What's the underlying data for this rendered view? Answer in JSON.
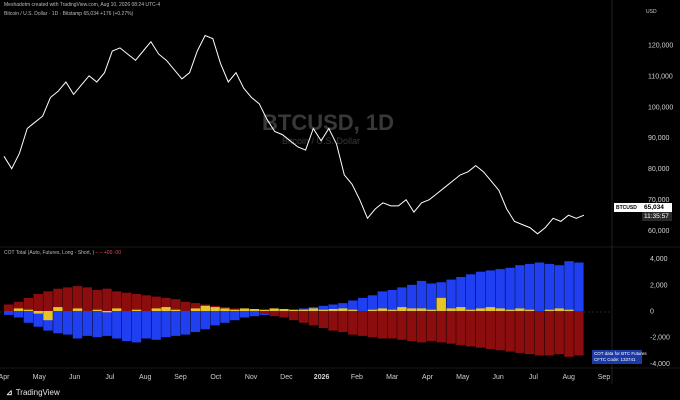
{
  "header": {
    "credit": "Meshadotm created with TradingView.com, Aug 10, 2026 08:24 UTC-4",
    "series_line": "Bitcoin / U.S. Dollar · 1D · Bitstamp 65,034 +176 (+0.27%)",
    "cot_line": "COT Total (Auto, Futures, Long - Short, ) ",
    "cot_values": "–  – +00 -00"
  },
  "watermark": {
    "symbol": "BTCUSD, 1D",
    "name": "Bitcoin / U.S. Dollar"
  },
  "currency": "USD",
  "price_badge": {
    "symbol": "BTCUSD",
    "last": "65,034",
    "countdown": "11:35:57"
  },
  "cot_note": {
    "line1": "COT data for BTC Futures",
    "line2": "CFTC Code: 133741"
  },
  "footer": {
    "brand": "TradingView"
  },
  "colors": {
    "price": "#ffffff",
    "long": "#1f3ff0",
    "short": "#8b0d0d",
    "net": "#e6c52a",
    "background": "#000000"
  },
  "chart_data": [
    {
      "type": "line",
      "title": "Bitcoin / U.S. Dollar",
      "x_labels": [
        "Apr",
        "May",
        "Jun",
        "Jul",
        "Aug",
        "Sep",
        "Oct",
        "Nov",
        "Dec",
        "2026",
        "Feb",
        "Mar",
        "Apr",
        "May",
        "Jun",
        "Jul",
        "Aug",
        "Sep"
      ],
      "y_ticks": [
        "60,000",
        "70,000",
        "80,000",
        "90,000",
        "100,000",
        "110,000",
        "120,000"
      ],
      "ylim": [
        57000,
        128000
      ],
      "series": [
        {
          "values": [
            84000,
            80000,
            85000,
            93000,
            95000,
            97000,
            103000,
            105000,
            108000,
            104000,
            107000,
            110000,
            108000,
            111000,
            118000,
            119000,
            117000,
            115000,
            118000,
            121000,
            117000,
            115000,
            112000,
            109000,
            111000,
            118000,
            123000,
            122000,
            114000,
            108000,
            111000,
            106000,
            103000,
            101000,
            96000,
            92000,
            91000,
            89000,
            87000,
            86000,
            93000,
            89000,
            93000,
            88000,
            78000,
            75000,
            70000,
            64000,
            67000,
            69000,
            68000,
            68000,
            70000,
            66000,
            69000,
            70000,
            72000,
            74000,
            76000,
            78000,
            79000,
            81000,
            79000,
            76000,
            73000,
            67000,
            63000,
            62000,
            61000,
            59000,
            61000,
            64000,
            63000,
            65000,
            64000,
            65000
          ]
        }
      ]
    },
    {
      "type": "bar",
      "title": "COT Total (Auto, Futures, Long - Short, )",
      "y_ticks": [
        "4,000",
        "2,000",
        "0",
        "-2,000",
        "-4,000"
      ],
      "ylim": [
        -4200,
        4200
      ],
      "series": [
        {
          "name": "Long",
          "values": [
            -300,
            -500,
            -900,
            -1200,
            -1500,
            -1700,
            -1800,
            -2100,
            -1900,
            -2000,
            -1900,
            -2100,
            -2300,
            -2400,
            -2100,
            -2200,
            -2000,
            -1900,
            -1800,
            -1600,
            -1400,
            -1100,
            -900,
            -700,
            -500,
            -400,
            -300,
            -200,
            -100,
            0,
            200,
            300,
            400,
            500,
            600,
            800,
            1000,
            1200,
            1500,
            1600,
            1800,
            2000,
            2300,
            2100,
            2200,
            2400,
            2600,
            2800,
            3000,
            3100,
            3200,
            3300,
            3500,
            3600,
            3700,
            3600,
            3500,
            3800,
            3700
          ]
        },
        {
          "name": "Short",
          "values": [
            500,
            700,
            1000,
            1300,
            1500,
            1700,
            1800,
            1900,
            1800,
            1600,
            1700,
            1500,
            1400,
            1300,
            1200,
            1100,
            1000,
            900,
            700,
            600,
            500,
            400,
            300,
            200,
            100,
            0,
            -200,
            -400,
            -500,
            -700,
            -900,
            -1100,
            -1300,
            -1500,
            -1600,
            -1800,
            -1900,
            -2000,
            -2100,
            -2100,
            -2200,
            -2300,
            -2400,
            -2300,
            -2400,
            -2500,
            -2600,
            -2700,
            -2800,
            -2900,
            -3000,
            -3100,
            -3200,
            -3300,
            -3400,
            -3400,
            -3300,
            -3500,
            -3400
          ]
        },
        {
          "name": "Net",
          "values": [
            0,
            200,
            100,
            -200,
            -700,
            300,
            0,
            200,
            0,
            100,
            -100,
            200,
            0,
            100,
            0,
            200,
            300,
            100,
            0,
            200,
            400,
            300,
            200,
            100,
            200,
            150,
            100,
            200,
            150,
            100,
            100,
            200,
            100,
            150,
            200,
            100,
            0,
            100,
            200,
            100,
            300,
            200,
            200,
            100,
            1000,
            200,
            300,
            100,
            200,
            300,
            200,
            100,
            200,
            100,
            0,
            100,
            200,
            100,
            0
          ]
        }
      ]
    }
  ]
}
